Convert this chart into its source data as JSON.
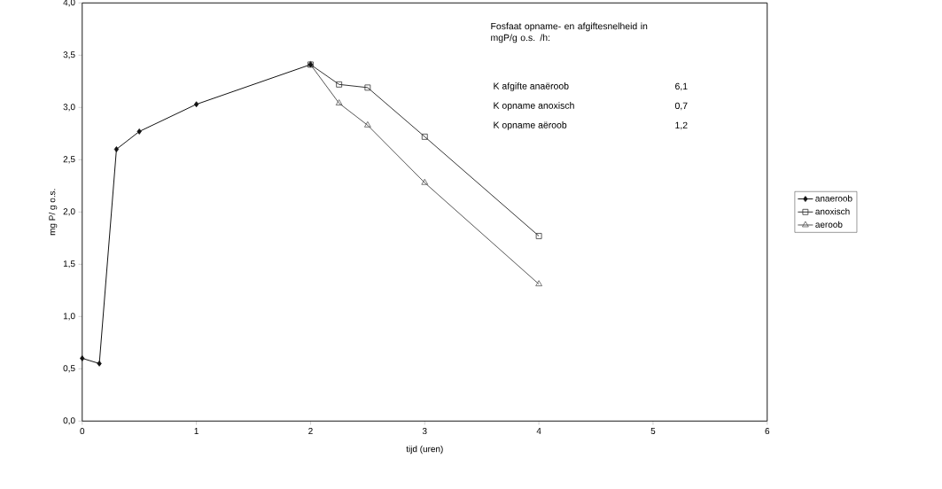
{
  "chart_data": {
    "type": "line",
    "xlabel": "tijd (uren)",
    "ylabel": "mg P/ g o.s.",
    "xlim": [
      0,
      6
    ],
    "xticks": [
      0,
      1,
      2,
      3,
      4,
      5,
      6
    ],
    "ylim": [
      0,
      4
    ],
    "yticks": [
      {
        "value": 0,
        "label": "0,0"
      },
      {
        "value": 0.5,
        "label": "0,5"
      },
      {
        "value": 1,
        "label": "1,0"
      },
      {
        "value": 1.5,
        "label": "1,5"
      },
      {
        "value": 2,
        "label": "2,0"
      },
      {
        "value": 2.5,
        "label": "2,5"
      },
      {
        "value": 3,
        "label": "3,0"
      },
      {
        "value": 3.5,
        "label": "3,5"
      },
      {
        "value": 4,
        "label": "4,0"
      }
    ],
    "grid": false,
    "legend": "right",
    "line_style": "solid",
    "series": [
      {
        "name": "anaeroob",
        "color": "#111111",
        "marker": "diamond",
        "x": [
          0,
          0.15,
          0.3,
          0.5,
          1,
          2
        ],
        "values": [
          0.6,
          0.55,
          2.6,
          2.77,
          3.03,
          3.41
        ]
      },
      {
        "name": "anoxisch",
        "color": "#333333",
        "marker": "square",
        "x": [
          2,
          2.25,
          2.5,
          3,
          4
        ],
        "values": [
          3.41,
          3.22,
          3.19,
          2.72,
          1.77
        ]
      },
      {
        "name": "aeroob",
        "color": "#555555",
        "marker": "triangle",
        "x": [
          2,
          2.25,
          2.5,
          3,
          4
        ],
        "values": [
          3.41,
          3.04,
          2.83,
          2.28,
          1.31
        ]
      }
    ],
    "annotations": [
      "Fosfaat opname- en afgiftesnelheid in mgP/g o.s. /h:",
      "K afgifte anaëroob",
      "6,1",
      "K opname anoxisch",
      "0,7",
      "K opname aëroob",
      "1,2"
    ]
  }
}
